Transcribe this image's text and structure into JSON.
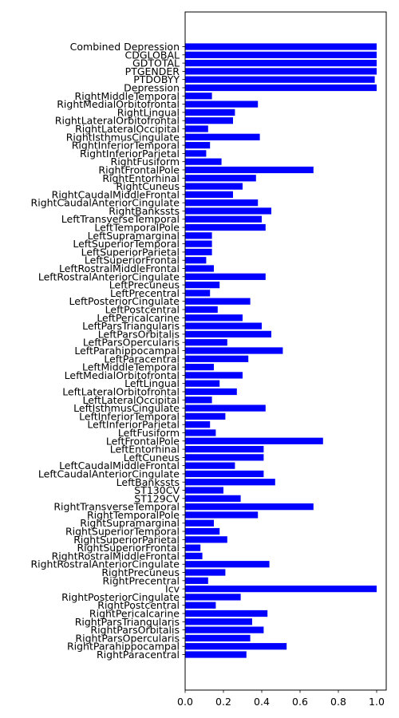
{
  "chart_data": {
    "type": "bar",
    "orientation": "horizontal",
    "title": "",
    "xlabel": "",
    "ylabel": "",
    "xlim": [
      0,
      1.05
    ],
    "x_ticks": [
      "0.0",
      "0.2",
      "0.4",
      "0.6",
      "0.8",
      "1.0"
    ],
    "x_tick_values": [
      0,
      0.2,
      0.4,
      0.6,
      0.8,
      1.0
    ],
    "grid": false,
    "legend": "none",
    "bar_color": "#0000ff",
    "categories": [
      "Combined Depression",
      "CDGLOBAL",
      "GDTOTAL",
      "PTGENDER",
      "PTDOBYY",
      "Depression",
      "RightMiddleTemporal",
      "RightMedialOrbitofrontal",
      "RightLingual",
      "RightLateralOrbitofrontal",
      "RightLateralOccipital",
      "RightIsthmusCingulate",
      "RightInferiorTemporal",
      "RightInferiorParietal",
      "RightFusiform",
      "RightFrontalPole",
      "RightEntorhinal",
      "RightCuneus",
      "RightCaudalMiddleFrontal",
      "RightCaudalAnteriorCingulate",
      "RightBankssts",
      "LeftTransverseTemporal",
      "LeftTemporalPole",
      "LeftSupramarginal",
      "LeftSuperiorTemporal",
      "LeftSuperiorParietal",
      "LeftSuperiorFrontal",
      "LeftRostralMiddleFrontal",
      "LeftRostralAnteriorCingulate",
      "LeftPrecuneus",
      "LeftPrecentral",
      "LeftPosteriorCingulate",
      "LeftPostcentral",
      "LeftPericalcarine",
      "LeftParsTriangularis",
      "LeftParsOrbitalis",
      "LeftParsOpercularis",
      "LeftParahippocampal",
      "LeftParacentral",
      "LeftMiddleTemporal",
      "LeftMedialOrbitofrontal",
      "LeftLingual",
      "LeftLateralOrbitofrontal",
      "LeftLateralOccipital",
      "LeftIsthmusCingulate",
      "LeftInferiorTemporal",
      "LeftInferiorParietal",
      "LeftFusiform",
      "LeftFrontalPole",
      "LeftEntorhinal",
      "LeftCuneus",
      "LeftCaudalMiddleFrontal",
      "LeftCaudalAnteriorCingulate",
      "LeftBankssts",
      "ST130CV",
      "ST129CV",
      "RightTransverseTemporal",
      "RightTemporalPole",
      "RightSupramarginal",
      "RightSuperiorTemporal",
      "RightSuperiorParietal",
      "RightSuperiorFrontal",
      "RightRostralMiddleFrontal",
      "RightRostralAnteriorCingulate",
      "RightPrecuneus",
      "RightPrecentral",
      "Icv",
      "RightPosteriorCingulate",
      "RightPostcentral",
      "RightPericalcarine",
      "RightParsTriangularis",
      "RightParsOrbitalis",
      "RightParsOpercularis",
      "RightParahippocampal",
      "RightParacentral"
    ],
    "values": [
      1.0,
      1.0,
      1.0,
      1.0,
      0.99,
      1.0,
      0.14,
      0.38,
      0.26,
      0.25,
      0.12,
      0.39,
      0.13,
      0.11,
      0.19,
      0.67,
      0.37,
      0.3,
      0.25,
      0.38,
      0.45,
      0.4,
      0.42,
      0.14,
      0.14,
      0.14,
      0.11,
      0.15,
      0.42,
      0.18,
      0.13,
      0.34,
      0.17,
      0.3,
      0.4,
      0.45,
      0.22,
      0.51,
      0.33,
      0.15,
      0.3,
      0.18,
      0.27,
      0.14,
      0.42,
      0.21,
      0.13,
      0.16,
      0.72,
      0.41,
      0.41,
      0.26,
      0.41,
      0.47,
      0.2,
      0.29,
      0.67,
      0.38,
      0.15,
      0.18,
      0.22,
      0.08,
      0.09,
      0.44,
      0.21,
      0.12,
      1.0,
      0.29,
      0.16,
      0.43,
      0.35,
      0.41,
      0.34,
      0.53,
      0.32
    ]
  }
}
